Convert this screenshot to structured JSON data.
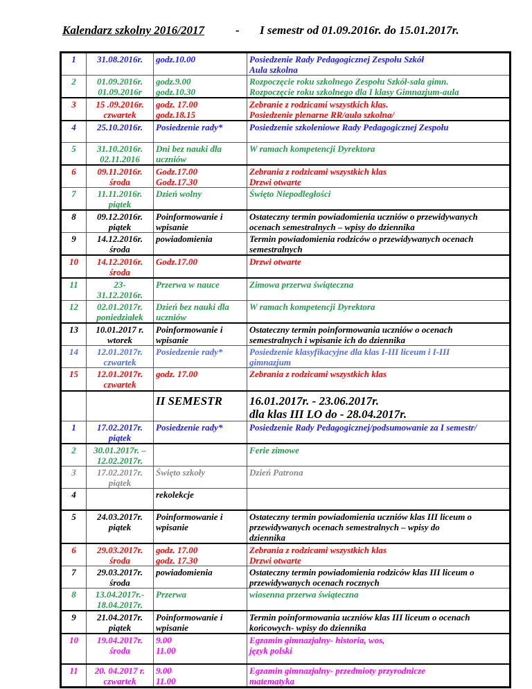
{
  "header": {
    "title": "Kalendarz szkolny  2016/2017",
    "dash": "-",
    "semester": "I semestr od 01.09.2016r.  do 15.01.2017r."
  },
  "colors": {
    "blue": "#1a1aff",
    "green": "#1e9e48",
    "red": "#ff0000",
    "black": "#000000",
    "gray": "#888888",
    "lightblue": "#4a6cff",
    "magenta": "#ff00ff"
  },
  "semester1": [
    {
      "num": "1",
      "date": "31.08.2016r.",
      "time": "godz.10.00",
      "desc": "Posiedzenie Rady Pedagogicznej Zespołu Szkół\nAula szkolna",
      "color": "blue"
    },
    {
      "num": "2",
      "date": "01.09.2016r.\n01.09.2016r",
      "time": "godz.9.00\ngodz.10.30",
      "desc": "Rozpoczęcie  roku szkolnego Zespołu Szkół-sala gimn.\nRozpoczęcie roku szkolnego dla I klasy Gimnazjum-aula",
      "color": "green"
    },
    {
      "num": "3",
      "date": "15 .09.2016r.\nczwartek",
      "time": "godz. 17.00\ngodz.18.15",
      "desc": "Zebranie z rodzicami wszystkich klas.\nPosiedzenie plenarne RR/aula szkolna/",
      "color": "red"
    },
    {
      "num": "4",
      "date": "25.10.2016r.",
      "time": "Posiedzenie rady*",
      "desc": "Posiedzenie szkoleniowe Rady Pedagogicznej Zespołu",
      "color": "blue"
    },
    {
      "num": "5",
      "date": "31.10.2016r.\n02.11.2016",
      "time": "Dni bez nauki dla\nuczniów",
      "desc": "W ramach kompetencji Dyrektora",
      "color": "green"
    },
    {
      "num": "6",
      "date": "09.11.2016r.\nśroda",
      "time": "Godz.17.00\nGodz.17.30",
      "desc": "Zebrania z rodzicami wszystkich klas\nDrzwi otwarte",
      "color": "red"
    },
    {
      "num": "7",
      "date": "11.11.2016r.\npiątek",
      "time": "Dzień wolny",
      "desc": "Święto Niepodległości",
      "color": "green"
    },
    {
      "num": "8",
      "date": "09.12.2016r.\npiątek",
      "time": "Poinformowanie i\nwpisanie",
      "desc": "Ostateczny termin powiadomienia uczniów o przewidywanych\nocenach semestralnych – wpisy do dziennika",
      "color": "black"
    },
    {
      "num": "9",
      "date": "14.12.2016r.\nśroda",
      "time": "powiadomienia",
      "desc": "Termin powiadomienia rodziców o przewidywanych ocenach\nsemestralnych",
      "color": "black"
    },
    {
      "num": "10",
      "date": "14.12.2016r.\nśroda",
      "time": "Godz.17.00",
      "desc": "Drzwi otwarte",
      "color": "red"
    },
    {
      "num": "11",
      "date": "23-\n31.12.2016r.",
      "time": "Przerwa w nauce",
      "desc": "Zimowa przerwa świąteczna",
      "color": "green"
    },
    {
      "num": "12",
      "date": "02.01.2017r.\nponiedziałek",
      "time": "Dzień bez nauki dla\nuczniów",
      "desc": "W ramach kompetencji Dyrektora",
      "color": "green"
    },
    {
      "num": "13",
      "date": "10.01.2017 r.\nwtorek",
      "time": "Poinformowanie i\nwpisanie",
      "desc": "Ostateczny termin poinformowania uczniów o  ocenach\nsemestralnych i wpisanie ich do dziennika",
      "color": "black"
    },
    {
      "num": "14",
      "date": "12.01.2017r.\nczwartek",
      "time": "Posiedzenie rady*",
      "desc": "Posiedzenie klasyfikacyjne dla klas I-III  liceum i I-III\ngimnazjum",
      "color": "lightblue"
    },
    {
      "num": "15",
      "date": "12.01.2017r.\nczwartek",
      "time": "godz. 17.00",
      "desc": "Zebrania z rodzicami wszystkich klas",
      "color": "red"
    }
  ],
  "semester2_header": {
    "label": "II SEMESTR",
    "dates": "16.01.2017r. - 23.06.2017r.\ndla klas III LO do - 28.04.2017r."
  },
  "semester2": [
    {
      "num": "1",
      "date": "17.02.2017r.\npiątek",
      "time": "Posiedzenie rady*",
      "desc": "Posiedzenie Rady Pedagogicznej/podsumowanie za I semestr/",
      "color": "blue"
    },
    {
      "num": "2",
      "date": "30.01.2017r. –\n12.02.2017r.",
      "time": "",
      "desc": "Ferie zimowe",
      "color": "green"
    },
    {
      "num": "3",
      "date": "17.02.2017r.\npiątek",
      "time": "Święto szkoły",
      "desc": "Dzień Patrona",
      "color": "gray"
    },
    {
      "num": "4",
      "date": "",
      "time": "rekolekcje",
      "desc": "",
      "color": "black"
    },
    {
      "num": "5",
      "date": "24.03.2017r.\npiątek",
      "time": "Poinformowanie i\nwpisanie",
      "desc": "Ostateczny termin powiadomienia uczniów klas III liceum o\nprzewidywanych ocenach semestralnych – wpisy do\ndziennika",
      "color": "black"
    },
    {
      "num": "6",
      "date": "29.03.2017r.\nśroda",
      "time": "godz. 17.00\ngodz. 17.30",
      "desc": "Zebrania z rodzicami wszystkich klas\n Drzwi otwarte",
      "color": "red"
    },
    {
      "num": "7",
      "date": "29.03.2017r.\nśroda",
      "time": "powiadomienia",
      "desc": "Ostateczny termin powiadomienia rodziców klas III liceum o\nprzewidywanych ocenach rocznych",
      "color": "black"
    },
    {
      "num": "8",
      "date": "13.04.2017r.-\n18.04.2017r.",
      "time": "Przerwa",
      "desc": "wiosenna przerwa świąteczna",
      "color": "green"
    },
    {
      "num": "9",
      "date": "21.04.2017r.\npiątek",
      "time": "Poinformowanie i\nwpisanie",
      "desc": "Termin poinformowania uczniów klas III liceum o ocenach\nkońcowych- wpisy do dziennika",
      "color": "black"
    },
    {
      "num": "10",
      "date": "19.04.2017r.\nśroda",
      "time": "9.00\n11.00",
      "desc": "Egzamin gimnazjalny- historia, wos,\njęzyk polski",
      "color": "magenta"
    },
    {
      "num": "11",
      "date": "20. 04.2017 r.\nczwartek",
      "time": "9.00\n11.00",
      "desc": "Egzamin gimnazjalny- przedmioty przyrodnicze\n matematyka",
      "color": "magenta"
    }
  ]
}
